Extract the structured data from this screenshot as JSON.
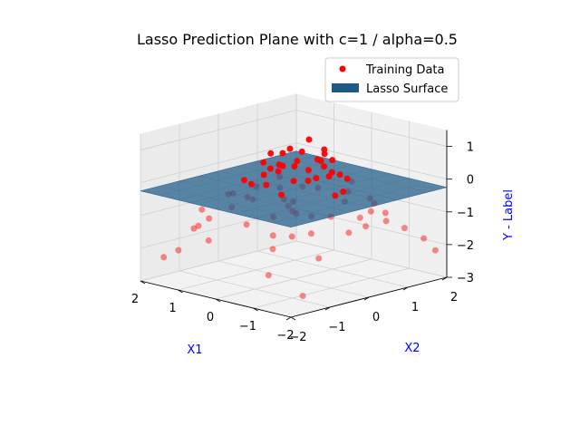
{
  "chart_data": {
    "type": "scatter",
    "projection": "3d",
    "title": "Lasso Prediction Plane with c=1 / alpha=0.5",
    "xlabel": "X1",
    "ylabel": "X2",
    "zlabel": "Y - Label",
    "label_color": "#0000ff",
    "xlim": [
      -2,
      2
    ],
    "ylim": [
      -2,
      2
    ],
    "zlim": [
      -3,
      1.5
    ],
    "xticks": [
      "−2",
      "−1",
      "0",
      "1",
      "2"
    ],
    "yticks": [
      "−2",
      "−1",
      "0",
      "1",
      "2"
    ],
    "zticks": [
      "−3",
      "−2",
      "−1",
      "0",
      "1"
    ],
    "grid": true,
    "legend_position": "top-right",
    "surface": {
      "name": "Lasso Surface",
      "color": "#1f5a87",
      "equation": "z = -0.25"
    },
    "series": [
      {
        "name": "Training Data",
        "color": "#ff0000",
        "points": [
          [
            -0.1,
            0.3,
            1.2
          ],
          [
            0.2,
            0.1,
            0.9
          ],
          [
            -0.3,
            -0.2,
            0.75
          ],
          [
            0.4,
            0.6,
            0.6
          ],
          [
            -0.6,
            0.2,
            0.55
          ],
          [
            0.1,
            -0.5,
            0.5
          ],
          [
            -0.2,
            0.8,
            0.45
          ],
          [
            0.7,
            -0.1,
            0.4
          ],
          [
            -0.8,
            -0.4,
            0.35
          ],
          [
            0.3,
            0.9,
            0.3
          ],
          [
            -0.5,
            0.5,
            0.25
          ],
          [
            0.6,
            0.3,
            0.2
          ],
          [
            -0.1,
            -0.8,
            0.15
          ],
          [
            0.9,
            0.5,
            0.1
          ],
          [
            -0.7,
            0.7,
            0.05
          ],
          [
            0.0,
            0.0,
            0.0
          ],
          [
            0.5,
            -0.6,
            -0.05
          ],
          [
            -0.4,
            -0.7,
            -0.1
          ],
          [
            1.0,
            0.2,
            -0.15
          ],
          [
            -1.0,
            0.1,
            -0.2
          ],
          [
            0.2,
            1.1,
            -0.25
          ],
          [
            -0.3,
            1.2,
            -0.3
          ],
          [
            0.8,
            -0.9,
            -0.35
          ],
          [
            -0.9,
            -0.9,
            -0.4
          ],
          [
            1.2,
            0.8,
            -0.45
          ],
          [
            -1.1,
            0.9,
            -0.5
          ],
          [
            0.4,
            -1.2,
            -0.55
          ],
          [
            -0.6,
            -1.1,
            -0.6
          ],
          [
            1.3,
            -0.3,
            -0.65
          ],
          [
            -1.2,
            -0.2,
            -0.7
          ],
          [
            0.0,
            1.4,
            -0.75
          ],
          [
            0.7,
            1.3,
            -0.8
          ],
          [
            -0.2,
            -1.4,
            -0.85
          ],
          [
            1.4,
            1.0,
            -0.9
          ],
          [
            -1.3,
            1.1,
            -0.95
          ],
          [
            0.9,
            -1.3,
            -1.0
          ],
          [
            -0.8,
            -1.3,
            -1.05
          ],
          [
            1.5,
            0.4,
            -1.1
          ],
          [
            -1.4,
            0.5,
            -1.15
          ],
          [
            0.3,
            1.6,
            -1.2
          ],
          [
            -0.5,
            1.5,
            -1.25
          ],
          [
            1.1,
            -1.5,
            -1.3
          ],
          [
            -1.0,
            -1.5,
            -1.35
          ],
          [
            1.6,
            1.3,
            -1.4
          ],
          [
            -1.5,
            1.4,
            -1.45
          ],
          [
            0.6,
            -1.6,
            -1.5
          ],
          [
            -0.7,
            1.7,
            -1.55
          ],
          [
            1.7,
            -0.8,
            -1.6
          ],
          [
            -1.6,
            -0.9,
            -1.65
          ],
          [
            0.1,
            1.8,
            -1.7
          ],
          [
            1.8,
            1.6,
            -1.75
          ],
          [
            -1.7,
            1.7,
            -1.8
          ],
          [
            1.2,
            -1.8,
            -1.9
          ],
          [
            -1.2,
            -1.8,
            -2.0
          ],
          [
            1.9,
            1.9,
            -2.1
          ],
          [
            -1.8,
            1.9,
            -2.2
          ],
          [
            0.5,
            1.9,
            -2.3
          ],
          [
            1.9,
            -1.5,
            -2.4
          ],
          [
            -1.9,
            -1.6,
            -2.5
          ],
          [
            1.5,
            1.9,
            -2.6
          ],
          [
            -0.4,
            0.4,
            0.95
          ],
          [
            0.3,
            -0.3,
            0.85
          ],
          [
            -0.2,
            0.6,
            0.7
          ],
          [
            0.5,
            0.2,
            0.65
          ],
          [
            -0.5,
            -0.1,
            0.5
          ],
          [
            0.0,
            0.7,
            0.4
          ],
          [
            0.2,
            -0.2,
            0.3
          ],
          [
            -0.6,
            0.0,
            0.25
          ],
          [
            0.6,
            0.6,
            0.1
          ],
          [
            -0.3,
            0.9,
            0.0
          ],
          [
            0.9,
            -0.4,
            -0.1
          ],
          [
            -0.9,
            0.4,
            -0.2
          ],
          [
            0.3,
            -0.9,
            -0.3
          ],
          [
            -0.4,
            -0.4,
            -0.4
          ],
          [
            1.1,
            0.1,
            -0.5
          ],
          [
            -1.1,
            -0.6,
            -0.6
          ],
          [
            0.8,
            1.0,
            -0.7
          ],
          [
            -0.9,
            1.2,
            -0.8
          ],
          [
            1.3,
            -1.1,
            -0.9
          ],
          [
            -1.2,
            -1.2,
            -1.0
          ]
        ]
      }
    ]
  }
}
